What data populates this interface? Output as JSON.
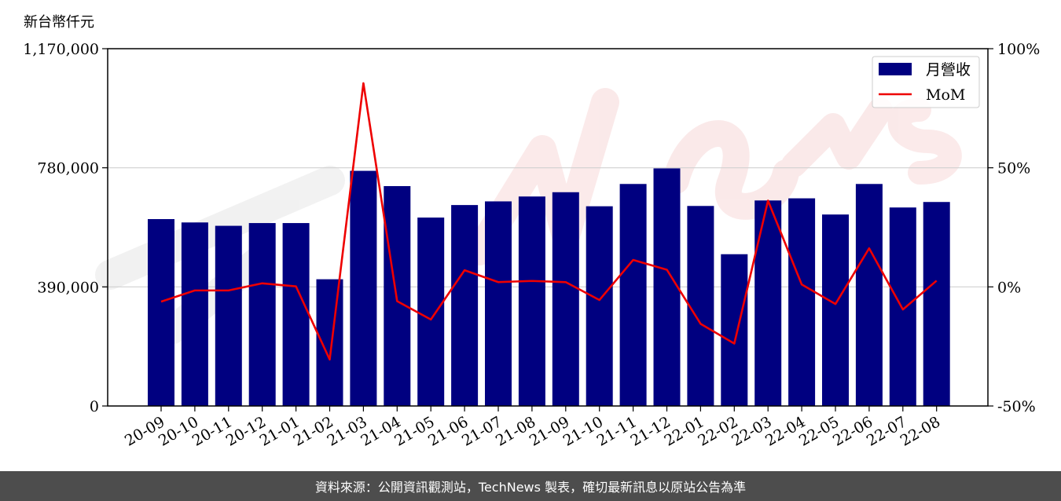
{
  "chart_data": {
    "type": "bar",
    "unit_label": "新台幣仟元",
    "categories": [
      "20-09",
      "20-10",
      "20-11",
      "20-12",
      "21-01",
      "21-02",
      "21-03",
      "21-04",
      "21-05",
      "21-06",
      "21-07",
      "21-08",
      "21-09",
      "21-10",
      "21-11",
      "21-12",
      "22-01",
      "22-02",
      "22-03",
      "22-04",
      "22-05",
      "22-06",
      "22-07",
      "22-08"
    ],
    "series": [
      {
        "name": "月營收",
        "axis": "left",
        "color": "#000080",
        "values": [
          612000,
          601000,
          590000,
          599000,
          599000,
          415000,
          770000,
          720000,
          617000,
          658000,
          670000,
          686000,
          700000,
          654000,
          727000,
          778000,
          655000,
          497000,
          673000,
          680000,
          627000,
          727000,
          650000,
          668000
        ]
      },
      {
        "name": "MoM",
        "axis": "right",
        "type": "line",
        "color": "#ee0000",
        "values": [
          -6.2,
          -1.5,
          -1.5,
          1.5,
          0.2,
          -30.5,
          85.5,
          -6.0,
          -13.7,
          7.0,
          2.0,
          2.5,
          2.0,
          -5.5,
          11.3,
          7.2,
          -15.5,
          -23.8,
          36.2,
          1.0,
          -7.2,
          16.2,
          -9.5,
          2.6
        ]
      }
    ],
    "left_axis": {
      "ylim": [
        0,
        1170000
      ],
      "ticks": [
        0,
        390000,
        780000,
        1170000
      ],
      "tick_labels": [
        "0",
        "390,000",
        "780,000",
        "1,170,000"
      ]
    },
    "right_axis": {
      "ylim": [
        -50,
        100
      ],
      "ticks": [
        -50,
        0,
        50,
        100
      ],
      "tick_labels": [
        "-50%",
        "0%",
        "50%",
        "100%"
      ]
    },
    "grid": "horizontal",
    "legend_position": "top-right",
    "footer": "資料來源：公開資訊觀測站，TechNews 製表，確切最新訊息以原站公告為準"
  }
}
